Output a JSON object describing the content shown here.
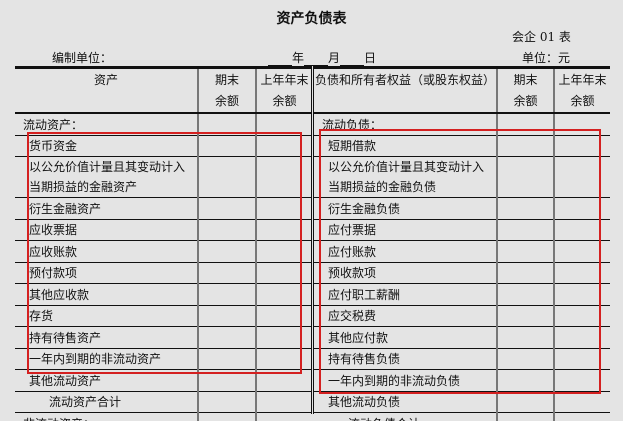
{
  "title": "资产负债表",
  "form_no": "会企 01 表",
  "preparer_label": "编制单位：",
  "date": {
    "year": "年",
    "month": "月",
    "day": "日"
  },
  "unit_label": "单位：元",
  "columns": {
    "assets": "资产",
    "period_end": [
      "期末",
      "余额"
    ],
    "prior_year_end": [
      "上年年末",
      "余额"
    ],
    "liabilities": "负债和所有者权益（或股东权益）"
  },
  "assets": {
    "section": "流动资产：",
    "items": [
      "货币资金",
      "以公允价值计量且其变动计入",
      "当期损益的金融资产",
      "衍生金融资产",
      "应收票据",
      "应收账款",
      "预付款项",
      "其他应收款",
      "存货",
      "持有待售资产",
      "一年内到期的非流动资产",
      "其他流动资产"
    ],
    "total": "流动资产合计",
    "next_section": "非流动资产："
  },
  "liabilities": {
    "section": "流动负债：",
    "items": [
      "短期借款",
      "以公允价值计量且其变动计入",
      "当期损益的金融负债",
      "衍生金融负债",
      "应付票据",
      "应付账款",
      "预收款项",
      "应付职工薪酬",
      "应交税费",
      "其他应付款",
      "持有待售负债",
      "一年内到期的非流动负债",
      "其他流动负债"
    ],
    "total": "流动负债合计"
  },
  "highlight_color": "#d42020"
}
